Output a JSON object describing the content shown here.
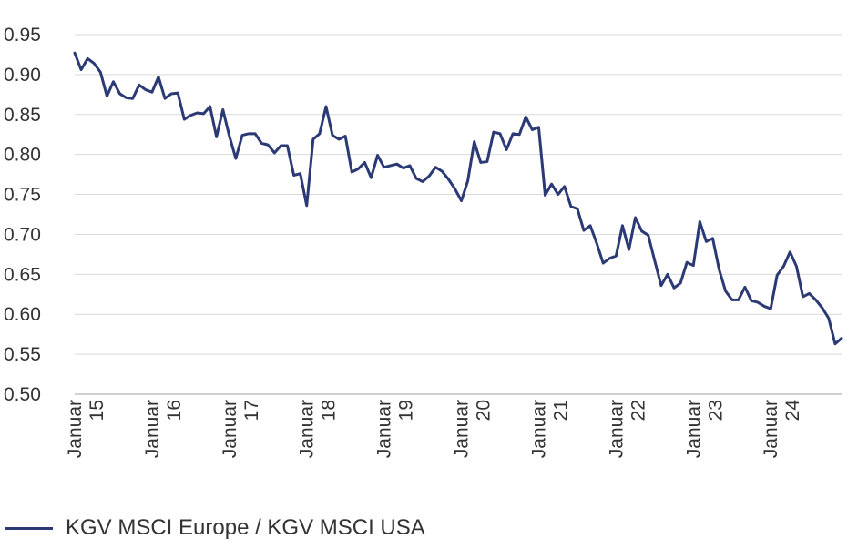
{
  "chart_data": {
    "type": "line",
    "title": "",
    "xlabel": "",
    "ylabel": "",
    "ylim": [
      0.5,
      0.95
    ],
    "yticks": [
      "0.95",
      "0.90",
      "0.85",
      "0.80",
      "0.75",
      "0.70",
      "0.65",
      "0.60",
      "0.55",
      "0.50"
    ],
    "xticks": [
      {
        "month": "Januar",
        "year": "15"
      },
      {
        "month": "Januar",
        "year": "16"
      },
      {
        "month": "Januar",
        "year": "17"
      },
      {
        "month": "Januar",
        "year": "18"
      },
      {
        "month": "Januar",
        "year": "19"
      },
      {
        "month": "Januar",
        "year": "20"
      },
      {
        "month": "Januar",
        "year": "21"
      },
      {
        "month": "Januar",
        "year": "22"
      },
      {
        "month": "Januar",
        "year": "23"
      },
      {
        "month": "Januar",
        "year": "24"
      }
    ],
    "x_start": "Januar 2015",
    "frequency": "monthly",
    "grid": true,
    "legend_position": "bottom-left",
    "series": [
      {
        "name": "KGV MSCI Europe / KGV MSCI USA",
        "color": "#2b3a75",
        "values": [
          0.927,
          0.906,
          0.92,
          0.914,
          0.903,
          0.873,
          0.891,
          0.876,
          0.871,
          0.87,
          0.887,
          0.881,
          0.878,
          0.897,
          0.87,
          0.876,
          0.877,
          0.844,
          0.849,
          0.852,
          0.851,
          0.86,
          0.822,
          0.856,
          0.823,
          0.795,
          0.824,
          0.826,
          0.826,
          0.814,
          0.812,
          0.802,
          0.811,
          0.811,
          0.774,
          0.776,
          0.736,
          0.819,
          0.826,
          0.86,
          0.824,
          0.819,
          0.823,
          0.778,
          0.782,
          0.79,
          0.771,
          0.799,
          0.784,
          0.786,
          0.788,
          0.783,
          0.786,
          0.77,
          0.766,
          0.773,
          0.784,
          0.779,
          0.769,
          0.757,
          0.742,
          0.767,
          0.816,
          0.79,
          0.791,
          0.828,
          0.826,
          0.806,
          0.826,
          0.825,
          0.847,
          0.831,
          0.834,
          0.749,
          0.763,
          0.75,
          0.76,
          0.735,
          0.732,
          0.705,
          0.711,
          0.689,
          0.664,
          0.67,
          0.673,
          0.711,
          0.681,
          0.721,
          0.704,
          0.699,
          0.667,
          0.636,
          0.65,
          0.633,
          0.639,
          0.665,
          0.661,
          0.716,
          0.691,
          0.695,
          0.656,
          0.629,
          0.618,
          0.618,
          0.634,
          0.617,
          0.615,
          0.61,
          0.607,
          0.649,
          0.66,
          0.678,
          0.66,
          0.622,
          0.626,
          0.618,
          0.608,
          0.595,
          0.563,
          0.57
        ]
      }
    ]
  }
}
